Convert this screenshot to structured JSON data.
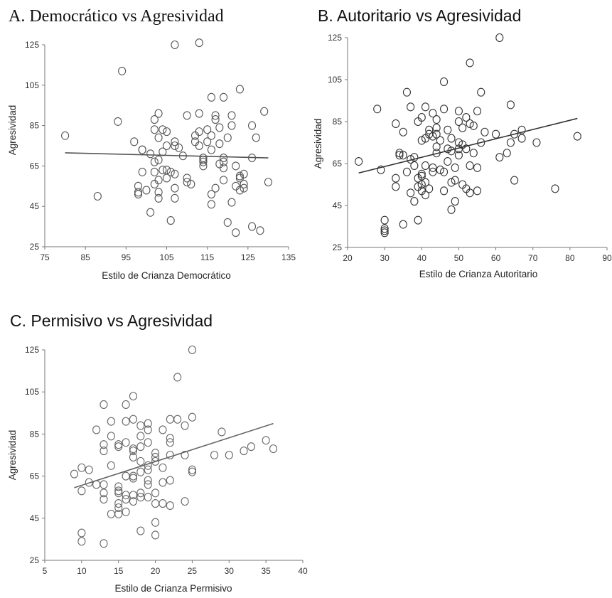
{
  "chart_data": [
    {
      "id": "a",
      "type": "scatter",
      "title": "A. Democrático vs Agresividad",
      "xlabel": "Estilo de Crianza Democrático",
      "ylabel": "Agresividad",
      "xlim": [
        75,
        135
      ],
      "ylim": [
        25,
        125
      ],
      "xticks": [
        75,
        85,
        95,
        105,
        115,
        125,
        135
      ],
      "yticks": [
        25,
        45,
        65,
        85,
        105,
        125
      ],
      "grid": false,
      "color": "#555555",
      "trendline": {
        "x": [
          80,
          130
        ],
        "y": [
          71.5,
          69
        ]
      },
      "points": [
        [
          80,
          80
        ],
        [
          88,
          50
        ],
        [
          93,
          87
        ],
        [
          94,
          112
        ],
        [
          97,
          77
        ],
        [
          98,
          55
        ],
        [
          98,
          51
        ],
        [
          98,
          52
        ],
        [
          99,
          62
        ],
        [
          99,
          73
        ],
        [
          99,
          73
        ],
        [
          100,
          53
        ],
        [
          101,
          42
        ],
        [
          101,
          71
        ],
        [
          102,
          67
        ],
        [
          102,
          83
        ],
        [
          102,
          88
        ],
        [
          102,
          62
        ],
        [
          102,
          56
        ],
        [
          103,
          91
        ],
        [
          103,
          79
        ],
        [
          103,
          49
        ],
        [
          103,
          52
        ],
        [
          103,
          58
        ],
        [
          103,
          68
        ],
        [
          104,
          83
        ],
        [
          104,
          72
        ],
        [
          104,
          63
        ],
        [
          105,
          82
        ],
        [
          105,
          75
        ],
        [
          105,
          63
        ],
        [
          105,
          59
        ],
        [
          106,
          38
        ],
        [
          106,
          62
        ],
        [
          107,
          125
        ],
        [
          107,
          54
        ],
        [
          107,
          49
        ],
        [
          107,
          61
        ],
        [
          107,
          77
        ],
        [
          107,
          75
        ],
        [
          108,
          74
        ],
        [
          109,
          70
        ],
        [
          110,
          57
        ],
        [
          110,
          59
        ],
        [
          110,
          90
        ],
        [
          111,
          56
        ],
        [
          112,
          80
        ],
        [
          112,
          77
        ],
        [
          113,
          126
        ],
        [
          113,
          91
        ],
        [
          113,
          82
        ],
        [
          113,
          75
        ],
        [
          114,
          65
        ],
        [
          114,
          67
        ],
        [
          114,
          69
        ],
        [
          114,
          68
        ],
        [
          115,
          83
        ],
        [
          115,
          77
        ],
        [
          116,
          80
        ],
        [
          116,
          73
        ],
        [
          116,
          51
        ],
        [
          116,
          46
        ],
        [
          116,
          99
        ],
        [
          117,
          54
        ],
        [
          117,
          90
        ],
        [
          117,
          88
        ],
        [
          118,
          76
        ],
        [
          118,
          84
        ],
        [
          118,
          66
        ],
        [
          119,
          69
        ],
        [
          119,
          67
        ],
        [
          119,
          99
        ],
        [
          119,
          64
        ],
        [
          119,
          58
        ],
        [
          120,
          79
        ],
        [
          120,
          37
        ],
        [
          121,
          90
        ],
        [
          121,
          47
        ],
        [
          121,
          85
        ],
        [
          122,
          55
        ],
        [
          122,
          65
        ],
        [
          122,
          32
        ],
        [
          123,
          103
        ],
        [
          123,
          60
        ],
        [
          123,
          59
        ],
        [
          123,
          53
        ],
        [
          124,
          56
        ],
        [
          124,
          61
        ],
        [
          124,
          54
        ],
        [
          126,
          85
        ],
        [
          126,
          69
        ],
        [
          126,
          35
        ],
        [
          127,
          79
        ],
        [
          128,
          33
        ],
        [
          129,
          92
        ],
        [
          130,
          57
        ]
      ]
    },
    {
      "id": "b",
      "type": "scatter",
      "title": "B. Autoritario vs Agresividad",
      "xlabel": "Estilo de Crianza Autoritario",
      "ylabel": "Agresividad",
      "xlim": [
        20,
        90
      ],
      "ylim": [
        25,
        125
      ],
      "xticks": [
        20,
        30,
        40,
        50,
        60,
        70,
        80,
        90
      ],
      "yticks": [
        25,
        45,
        65,
        85,
        105,
        125
      ],
      "grid": false,
      "color": "#333333",
      "trendline": {
        "x": [
          23,
          82
        ],
        "y": [
          60.5,
          86.5
        ]
      },
      "points": [
        [
          23,
          66
        ],
        [
          28,
          91
        ],
        [
          29,
          62
        ],
        [
          30,
          38
        ],
        [
          30,
          34
        ],
        [
          30,
          33
        ],
        [
          30,
          32
        ],
        [
          33,
          54
        ],
        [
          33,
          58
        ],
        [
          33,
          84
        ],
        [
          34,
          70
        ],
        [
          34,
          69
        ],
        [
          35,
          80
        ],
        [
          35,
          36
        ],
        [
          35,
          69
        ],
        [
          36,
          99
        ],
        [
          36,
          61
        ],
        [
          37,
          92
        ],
        [
          37,
          51
        ],
        [
          37,
          67
        ],
        [
          38,
          68
        ],
        [
          38,
          47
        ],
        [
          38,
          64
        ],
        [
          39,
          85
        ],
        [
          39,
          58
        ],
        [
          39,
          38
        ],
        [
          39,
          54
        ],
        [
          40,
          60
        ],
        [
          40,
          59
        ],
        [
          40,
          76
        ],
        [
          40,
          55
        ],
        [
          40,
          52
        ],
        [
          40,
          87
        ],
        [
          41,
          92
        ],
        [
          41,
          50
        ],
        [
          41,
          77
        ],
        [
          41,
          64
        ],
        [
          41,
          56
        ],
        [
          42,
          79
        ],
        [
          42,
          81
        ],
        [
          42,
          53
        ],
        [
          43,
          78
        ],
        [
          43,
          89
        ],
        [
          43,
          63
        ],
        [
          43,
          61
        ],
        [
          44,
          82
        ],
        [
          44,
          73
        ],
        [
          44,
          86
        ],
        [
          44,
          70
        ],
        [
          44,
          79
        ],
        [
          45,
          76
        ],
        [
          45,
          62
        ],
        [
          46,
          91
        ],
        [
          46,
          104
        ],
        [
          46,
          52
        ],
        [
          46,
          61
        ],
        [
          47,
          81
        ],
        [
          47,
          72
        ],
        [
          47,
          66
        ],
        [
          48,
          56
        ],
        [
          48,
          43
        ],
        [
          48,
          71
        ],
        [
          48,
          77
        ],
        [
          49,
          47
        ],
        [
          49,
          63
        ],
        [
          49,
          57
        ],
        [
          50,
          85
        ],
        [
          50,
          75
        ],
        [
          50,
          72
        ],
        [
          50,
          90
        ],
        [
          50,
          69
        ],
        [
          51,
          82
        ],
        [
          51,
          74
        ],
        [
          51,
          55
        ],
        [
          52,
          87
        ],
        [
          52,
          72
        ],
        [
          52,
          53
        ],
        [
          53,
          113
        ],
        [
          53,
          84
        ],
        [
          53,
          51
        ],
        [
          53,
          64
        ],
        [
          54,
          83
        ],
        [
          54,
          70
        ],
        [
          55,
          52
        ],
        [
          55,
          63
        ],
        [
          55,
          90
        ],
        [
          56,
          99
        ],
        [
          56,
          75
        ],
        [
          57,
          80
        ],
        [
          60,
          79
        ],
        [
          61,
          68
        ],
        [
          61,
          125
        ],
        [
          63,
          70
        ],
        [
          64,
          93
        ],
        [
          64,
          75
        ],
        [
          65,
          57
        ],
        [
          65,
          79
        ],
        [
          67,
          81
        ],
        [
          67,
          77
        ],
        [
          71,
          75
        ],
        [
          76,
          53
        ],
        [
          82,
          78
        ]
      ]
    },
    {
      "id": "c",
      "type": "scatter",
      "title": "C. Permisivo vs Agresividad",
      "xlabel": "Estilo de Crianza Permisivo",
      "ylabel": "Agresividad",
      "xlim": [
        5,
        40
      ],
      "ylim": [
        25,
        125
      ],
      "xticks": [
        5,
        10,
        15,
        20,
        25,
        30,
        35,
        40
      ],
      "yticks": [
        25,
        45,
        65,
        85,
        105,
        125
      ],
      "grid": false,
      "color": "#666666",
      "trendline": {
        "x": [
          9,
          36
        ],
        "y": [
          59.5,
          90
        ]
      },
      "points": [
        [
          9,
          66
        ],
        [
          10,
          69
        ],
        [
          10,
          38
        ],
        [
          10,
          34
        ],
        [
          10,
          58
        ],
        [
          11,
          68
        ],
        [
          11,
          62
        ],
        [
          12,
          61
        ],
        [
          12,
          87
        ],
        [
          13,
          99
        ],
        [
          13,
          80
        ],
        [
          13,
          77
        ],
        [
          13,
          61
        ],
        [
          13,
          57
        ],
        [
          13,
          54
        ],
        [
          13,
          33
        ],
        [
          14,
          84
        ],
        [
          14,
          91
        ],
        [
          14,
          70
        ],
        [
          14,
          47
        ],
        [
          15,
          80
        ],
        [
          15,
          79
        ],
        [
          15,
          60
        ],
        [
          15,
          58
        ],
        [
          15,
          57
        ],
        [
          15,
          52
        ],
        [
          15,
          50
        ],
        [
          15,
          47
        ],
        [
          16,
          99
        ],
        [
          16,
          91
        ],
        [
          16,
          81
        ],
        [
          16,
          65
        ],
        [
          16,
          56
        ],
        [
          16,
          54
        ],
        [
          16,
          48
        ],
        [
          17,
          103
        ],
        [
          17,
          92
        ],
        [
          17,
          78
        ],
        [
          17,
          77
        ],
        [
          17,
          74
        ],
        [
          17,
          65
        ],
        [
          17,
          64
        ],
        [
          17,
          56
        ],
        [
          17,
          53
        ],
        [
          18,
          84
        ],
        [
          18,
          89
        ],
        [
          18,
          79
        ],
        [
          18,
          72
        ],
        [
          18,
          67
        ],
        [
          18,
          57
        ],
        [
          18,
          55
        ],
        [
          18,
          39
        ],
        [
          19,
          90
        ],
        [
          19,
          87
        ],
        [
          19,
          81
        ],
        [
          19,
          70
        ],
        [
          19,
          68
        ],
        [
          19,
          63
        ],
        [
          19,
          61
        ],
        [
          19,
          55
        ],
        [
          20,
          76
        ],
        [
          20,
          74
        ],
        [
          20,
          72
        ],
        [
          20,
          57
        ],
        [
          20,
          52
        ],
        [
          20,
          43
        ],
        [
          20,
          37
        ],
        [
          21,
          87
        ],
        [
          21,
          69
        ],
        [
          21,
          62
        ],
        [
          21,
          52
        ],
        [
          22,
          92
        ],
        [
          22,
          83
        ],
        [
          22,
          81
        ],
        [
          22,
          75
        ],
        [
          22,
          63
        ],
        [
          22,
          51
        ],
        [
          23,
          112
        ],
        [
          23,
          92
        ],
        [
          24,
          89
        ],
        [
          24,
          75
        ],
        [
          24,
          53
        ],
        [
          25,
          125
        ],
        [
          25,
          93
        ],
        [
          25,
          68
        ],
        [
          25,
          67
        ],
        [
          28,
          75
        ],
        [
          29,
          86
        ],
        [
          30,
          75
        ],
        [
          32,
          77
        ],
        [
          33,
          79
        ],
        [
          35,
          82
        ],
        [
          36,
          78
        ]
      ]
    }
  ]
}
